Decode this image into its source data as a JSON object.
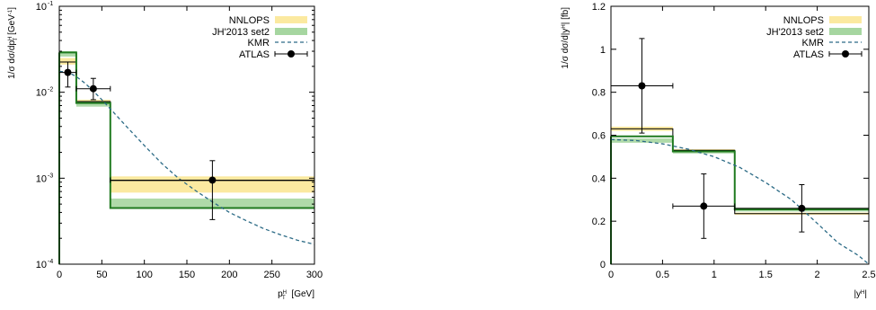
{
  "colors": {
    "nnlops": "#fbe9a0",
    "jh": "#a6d6a0",
    "jh_line": "#1f7a1f",
    "kmr": "#2c6b86",
    "atlas": "#000000"
  },
  "legend": {
    "nnlops": "NNLOPS",
    "jh": "JH'2013 set2",
    "kmr": "KMR",
    "atlas": "ATLAS"
  },
  "chart_data": [
    {
      "type": "line",
      "xlabel": "p_T^H [GeV]",
      "ylabel": "1/σ dσ/dp_T^H [GeV⁻¹]",
      "xlim": [
        0,
        300
      ],
      "ylim": [
        0.0001,
        0.1
      ],
      "yscale": "log",
      "xticks": [
        0,
        50,
        100,
        150,
        200,
        250,
        300
      ],
      "xtick_labels": [
        "0",
        "50",
        "100",
        "150",
        "200",
        "250",
        "300"
      ],
      "ytick_labels": [
        "10",
        "10",
        "10",
        "10"
      ],
      "ytick_exponents": [
        "-4",
        "-3",
        "-2",
        "-1"
      ],
      "ytick_values": [
        0.0001,
        0.001,
        0.01,
        0.1
      ],
      "bins": [
        0,
        20,
        60,
        300
      ],
      "nnlops": {
        "low": [
          0.021,
          0.0074,
          0.00068
        ],
        "high": [
          0.025,
          0.0082,
          0.00105
        ],
        "center": [
          0.0225,
          0.0078,
          0.00094
        ]
      },
      "jh": {
        "low": [
          0.026,
          0.0068,
          0.00044
        ],
        "high": [
          0.03,
          0.0077,
          0.00058
        ],
        "center": [
          0.029,
          0.0075,
          0.00045
        ]
      },
      "kmr": {
        "x": [
          0,
          10,
          20,
          30,
          40,
          50,
          60,
          70,
          80,
          100,
          120,
          140,
          160,
          180,
          200,
          220,
          240,
          260,
          280,
          300
        ],
        "y": [
          0.0175,
          0.0172,
          0.0152,
          0.0128,
          0.0103,
          0.0082,
          0.0064,
          0.005,
          0.0039,
          0.0024,
          0.0015,
          0.001,
          0.00072,
          0.00053,
          0.0004,
          0.00032,
          0.00026,
          0.00022,
          0.00019,
          0.00017
        ]
      },
      "atlas": {
        "x": [
          10,
          40,
          180
        ],
        "y": [
          0.017,
          0.011,
          0.00095
        ],
        "xerr": [
          10,
          20,
          120
        ],
        "ylow": [
          0.0115,
          0.0082,
          0.00033
        ],
        "yhigh": [
          0.0225,
          0.0145,
          0.0016
        ]
      }
    },
    {
      "type": "line",
      "xlabel": "|y^H|",
      "ylabel": "1/σ dσ/d|y^H| [fb]",
      "xlim": [
        0,
        2.5
      ],
      "ylim": [
        0,
        1.2
      ],
      "yscale": "linear",
      "xticks": [
        0,
        0.5,
        1,
        1.5,
        2,
        2.5
      ],
      "xtick_labels": [
        "0",
        "0.5",
        "1",
        "1.5",
        "2",
        "2.5"
      ],
      "yticks": [
        0,
        0.2,
        0.4,
        0.6,
        0.8,
        1,
        1.2
      ],
      "ytick_labels": [
        "0",
        "0.2",
        "0.4",
        "0.6",
        "0.8",
        "1",
        "1.2"
      ],
      "bins": [
        0,
        0.6,
        1.2,
        2.5
      ],
      "nnlops": {
        "low": [
          0.62,
          0.52,
          0.23
        ],
        "high": [
          0.64,
          0.535,
          0.24
        ],
        "center": [
          0.63,
          0.53,
          0.235
        ]
      },
      "jh": {
        "low": [
          0.565,
          0.515,
          0.245
        ],
        "high": [
          0.585,
          0.53,
          0.262
        ],
        "center": [
          0.595,
          0.525,
          0.255
        ]
      },
      "kmr": {
        "x": [
          0,
          0.25,
          0.5,
          0.75,
          1,
          1.25,
          1.5,
          1.75,
          2,
          2.2,
          2.4,
          2.5
        ],
        "y": [
          0.58,
          0.575,
          0.56,
          0.535,
          0.5,
          0.45,
          0.38,
          0.3,
          0.19,
          0.1,
          0.04,
          0.0
        ]
      },
      "atlas": {
        "x": [
          0.3,
          0.9,
          1.85
        ],
        "y": [
          0.83,
          0.27,
          0.26
        ],
        "xerr": [
          0.3,
          0.3,
          0.65
        ],
        "ylow": [
          0.61,
          0.12,
          0.15
        ],
        "yhigh": [
          1.05,
          0.42,
          0.37
        ]
      }
    }
  ]
}
